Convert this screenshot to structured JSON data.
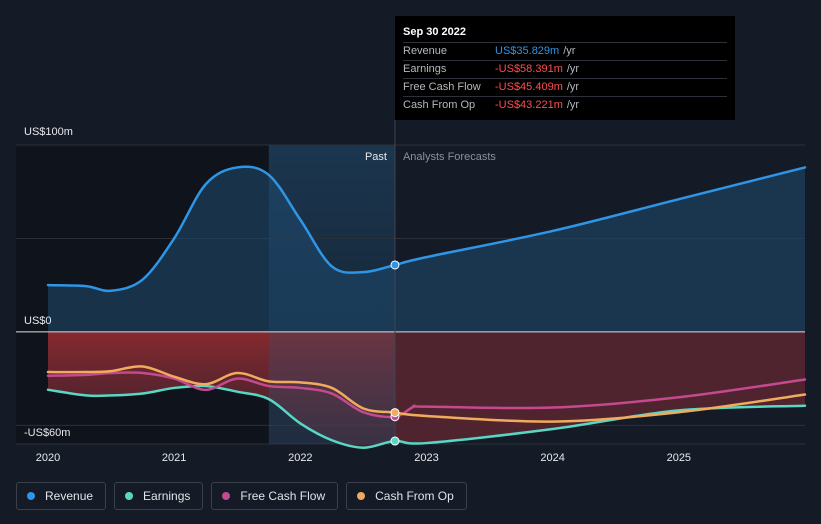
{
  "chart_data": {
    "type": "line",
    "x_unit": "year",
    "xlim": [
      2020,
      2026
    ],
    "ylim": [
      -60,
      100
    ],
    "y_tick_labels": [
      "US$100m",
      "US$0",
      "-US$60m"
    ],
    "x_tick_labels": [
      "2020",
      "2021",
      "2022",
      "2023",
      "2024",
      "2025"
    ],
    "x_ticks": [
      2020,
      2021,
      2022,
      2023,
      2024,
      2025
    ],
    "section_labels": {
      "past": "Past",
      "forecast": "Analysts Forecasts"
    },
    "divider_x": 2022.75,
    "highlight_start_x": 2021.75,
    "series": [
      {
        "name": "Revenue",
        "color": "#2f95e6",
        "points": [
          [
            2020,
            25
          ],
          [
            2020.3,
            24.5
          ],
          [
            2020.5,
            22
          ],
          [
            2020.75,
            28
          ],
          [
            2021,
            50
          ],
          [
            2021.25,
            79
          ],
          [
            2021.5,
            88
          ],
          [
            2021.75,
            84
          ],
          [
            2022,
            60
          ],
          [
            2022.25,
            35
          ],
          [
            2022.5,
            32
          ],
          [
            2022.75,
            35.8
          ],
          [
            2023,
            40
          ],
          [
            2024,
            54
          ],
          [
            2025,
            71
          ],
          [
            2026,
            88
          ]
        ]
      },
      {
        "name": "Earnings",
        "color": "#59d6c4",
        "points": [
          [
            2020,
            -31
          ],
          [
            2020.3,
            -34
          ],
          [
            2020.5,
            -34
          ],
          [
            2020.75,
            -33
          ],
          [
            2021,
            -30
          ],
          [
            2021.25,
            -29
          ],
          [
            2021.5,
            -32
          ],
          [
            2021.75,
            -36
          ],
          [
            2022,
            -49
          ],
          [
            2022.25,
            -58
          ],
          [
            2022.5,
            -62
          ],
          [
            2022.75,
            -58.4
          ],
          [
            2023,
            -59.5
          ],
          [
            2024,
            -52
          ],
          [
            2025,
            -42
          ],
          [
            2026,
            -39.5
          ]
        ]
      },
      {
        "name": "Free Cash Flow",
        "color": "#c44a8f",
        "points": [
          [
            2020,
            -23.5
          ],
          [
            2020.3,
            -23
          ],
          [
            2020.5,
            -22
          ],
          [
            2020.75,
            -22
          ],
          [
            2021,
            -25
          ],
          [
            2021.25,
            -31
          ],
          [
            2021.5,
            -25
          ],
          [
            2021.75,
            -29
          ],
          [
            2022,
            -30
          ],
          [
            2022.25,
            -33
          ],
          [
            2022.5,
            -43
          ],
          [
            2022.75,
            -45.4
          ],
          [
            2022.9,
            -40
          ],
          [
            2023,
            -40
          ],
          [
            2024,
            -40.5
          ],
          [
            2025,
            -35
          ],
          [
            2026,
            -25.5
          ]
        ]
      },
      {
        "name": "Cash From Op",
        "color": "#f0ab5c",
        "points": [
          [
            2020,
            -21.5
          ],
          [
            2020.3,
            -21.5
          ],
          [
            2020.5,
            -21
          ],
          [
            2020.75,
            -18.5
          ],
          [
            2021,
            -24
          ],
          [
            2021.25,
            -28
          ],
          [
            2021.5,
            -22
          ],
          [
            2021.75,
            -26.5
          ],
          [
            2022,
            -27
          ],
          [
            2022.25,
            -30
          ],
          [
            2022.5,
            -41
          ],
          [
            2022.75,
            -43.2
          ],
          [
            2023,
            -45
          ],
          [
            2024,
            -48
          ],
          [
            2025,
            -43
          ],
          [
            2026,
            -33.5
          ]
        ]
      }
    ],
    "legend_position": "bottom-left",
    "grid": true
  },
  "tooltip": {
    "date": "Sep 30 2022",
    "rows": [
      {
        "name": "Revenue",
        "value": "US$35.829m",
        "unit": "/yr",
        "color": "#2f95e6"
      },
      {
        "name": "Earnings",
        "value": "-US$58.391m",
        "unit": "/yr",
        "color": "#ff4d4f"
      },
      {
        "name": "Free Cash Flow",
        "value": "-US$45.409m",
        "unit": "/yr",
        "color": "#ff4d4f"
      },
      {
        "name": "Cash From Op",
        "value": "-US$43.221m",
        "unit": "/yr",
        "color": "#ff4d4f"
      }
    ]
  },
  "legend": [
    {
      "label": "Revenue",
      "color": "#2f95e6"
    },
    {
      "label": "Earnings",
      "color": "#59d6c4"
    },
    {
      "label": "Free Cash Flow",
      "color": "#c44a8f"
    },
    {
      "label": "Cash From Op",
      "color": "#f0ab5c"
    }
  ]
}
